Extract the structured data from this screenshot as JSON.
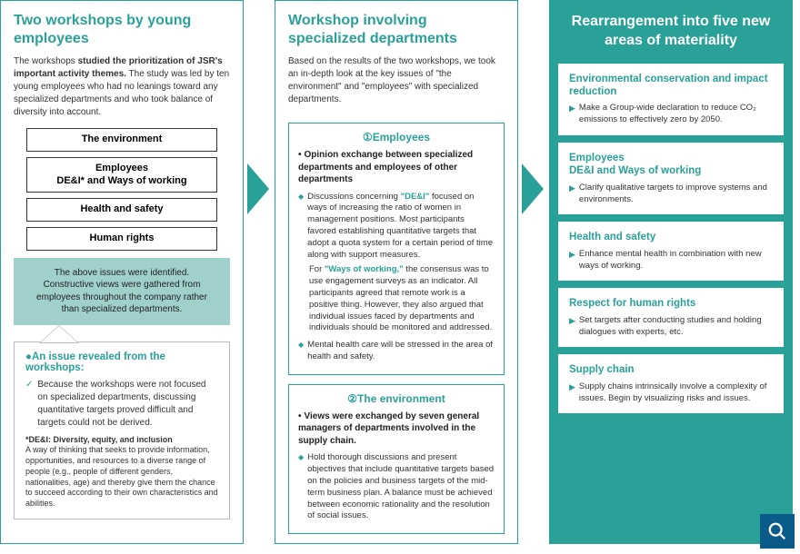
{
  "colors": {
    "teal": "#2aa198",
    "tealLight": "#9fd0cc",
    "grayBorder": "#bbbbbb",
    "searchBg": "#0a5a8a"
  },
  "col1": {
    "title": "Two workshops by young employees",
    "descHtml": "The workshops <b>studied the prioritization of JSR's important activity themes.</b> The study was led by ten young employees who had no leanings toward any specialized departments and who took balance of diversity into account.",
    "items": [
      "The environment",
      "Employees\nDE&I* and Ways of working",
      "Health and safety",
      "Human rights"
    ],
    "tealBox": "The above issues were identified. Constructive views were gathered from employees throughout the company rather than specialized departments.",
    "revealTitle": "●An issue revealed from the workshops:",
    "revealBody": "Because the workshops were not focused on specialized departments, discussing quantitative targets proved difficult and targets could not be derived.",
    "footnoteLabel": "*DE&I: Diversity, equity, and inclusion",
    "footnoteBody": "A way of thinking that seeks to provide information, opportunities, and resources to a diverse range of people (e.g., people of different genders, nationalities, age) and thereby give them the chance to succeed according to their own characteristics and abilities."
  },
  "col2": {
    "title": "Workshop involving specialized departments",
    "desc": "Based on the results of the two workshops, we took an in-depth look at the key issues of \"the environment\" and \"employees\" with specialized departments.",
    "box1": {
      "title": "①Employees",
      "head": "Opinion exchange between specialized departments and employees of other departments",
      "p1Html": "Discussions concerning <span class=\"teal-text\">\"DE&I\"</span> focused on ways of increasing the ratio of women in management positions. Most participants favored establishing quantitative targets that adopt a quota system for a certain period of time along with support measures.",
      "p2Html": "For <span class=\"teal-text\">\"Ways of working,\"</span> the consensus was to use engagement surveys as an indicator. All participants agreed that remote work is a positive thing. However, they also argued that individual issues faced by departments and individuals should be monitored and addressed.",
      "p3": "Mental health care will be stressed in the area of health and safety."
    },
    "box2": {
      "title": "②The environment",
      "head": "Views were exchanged by seven general managers of departments involved in the supply chain.",
      "p1": "Hold thorough discussions and present objectives that include quantitative targets based on the policies and business targets of the mid-term business plan. A balance must be achieved between economic rationality and the resolution of social issues."
    }
  },
  "col3": {
    "title": "Rearrangement into five new areas of materiality",
    "cards": [
      {
        "title": "Environmental conservation and impact reduction",
        "body": "Make a Group-wide declaration to reduce CO₂ emissions to effectively zero by 2050."
      },
      {
        "title": "Employees\nDE&I and Ways of working",
        "body": "Clarify qualitative targets to improve systems and environments."
      },
      {
        "title": "Health and safety",
        "body": "Enhance mental health in combination with new ways of working."
      },
      {
        "title": "Respect for human rights",
        "body": "Set targets after conducting studies and holding dialogues with experts, etc."
      },
      {
        "title": "Supply chain",
        "body": "Supply chains intrinsically involve a complexity of issues. Begin by visualizing risks and issues."
      }
    ]
  }
}
